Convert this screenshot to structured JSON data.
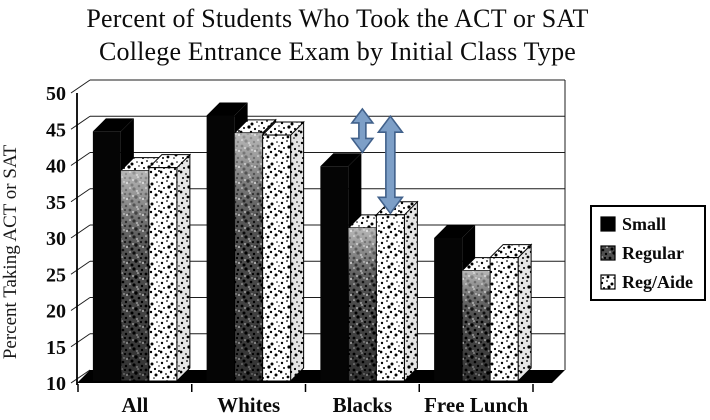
{
  "title": {
    "line1": "Percent of Students Who Took the ACT or SAT",
    "line2": "College Entrance Exam by Initial Class Type"
  },
  "chart_data": {
    "type": "bar",
    "projection": "3d",
    "title": "Percent of Students Who Took the ACT or SAT College Entrance Exam by Initial Class Type",
    "categories": [
      "All",
      "Whites",
      "Blacks",
      "Free Lunch"
    ],
    "series": [
      {
        "name": "Small",
        "style": "solid-black",
        "values": [
          44.7,
          46.9,
          39.9,
          30.0
        ]
      },
      {
        "name": "Regular",
        "style": "dark-speckle",
        "values": [
          39.3,
          44.5,
          31.4,
          25.5
        ]
      },
      {
        "name": "Reg/Aide",
        "style": "light-speckle",
        "values": [
          39.7,
          44.2,
          33.2,
          27.3
        ]
      }
    ],
    "xlabel": "",
    "ylabel": "Percent Taking ACT or SAT",
    "y_ticks": [
      10,
      15,
      20,
      25,
      30,
      35,
      40,
      45,
      50
    ],
    "ylim": [
      10,
      50
    ],
    "grid": true,
    "legend_position": "right",
    "annotations": [
      {
        "type": "double-arrow",
        "category": "Blacks",
        "over_series": "Regular",
        "value_from": 47.8,
        "value_to": 41.8,
        "color": "#7d9fc7",
        "outline": "#41618b"
      },
      {
        "type": "double-arrow",
        "category": "Blacks",
        "over_series": "Reg/Aide",
        "value_from": 46.8,
        "value_to": 33.4,
        "color": "#7d9fc7",
        "outline": "#41618b"
      }
    ]
  }
}
